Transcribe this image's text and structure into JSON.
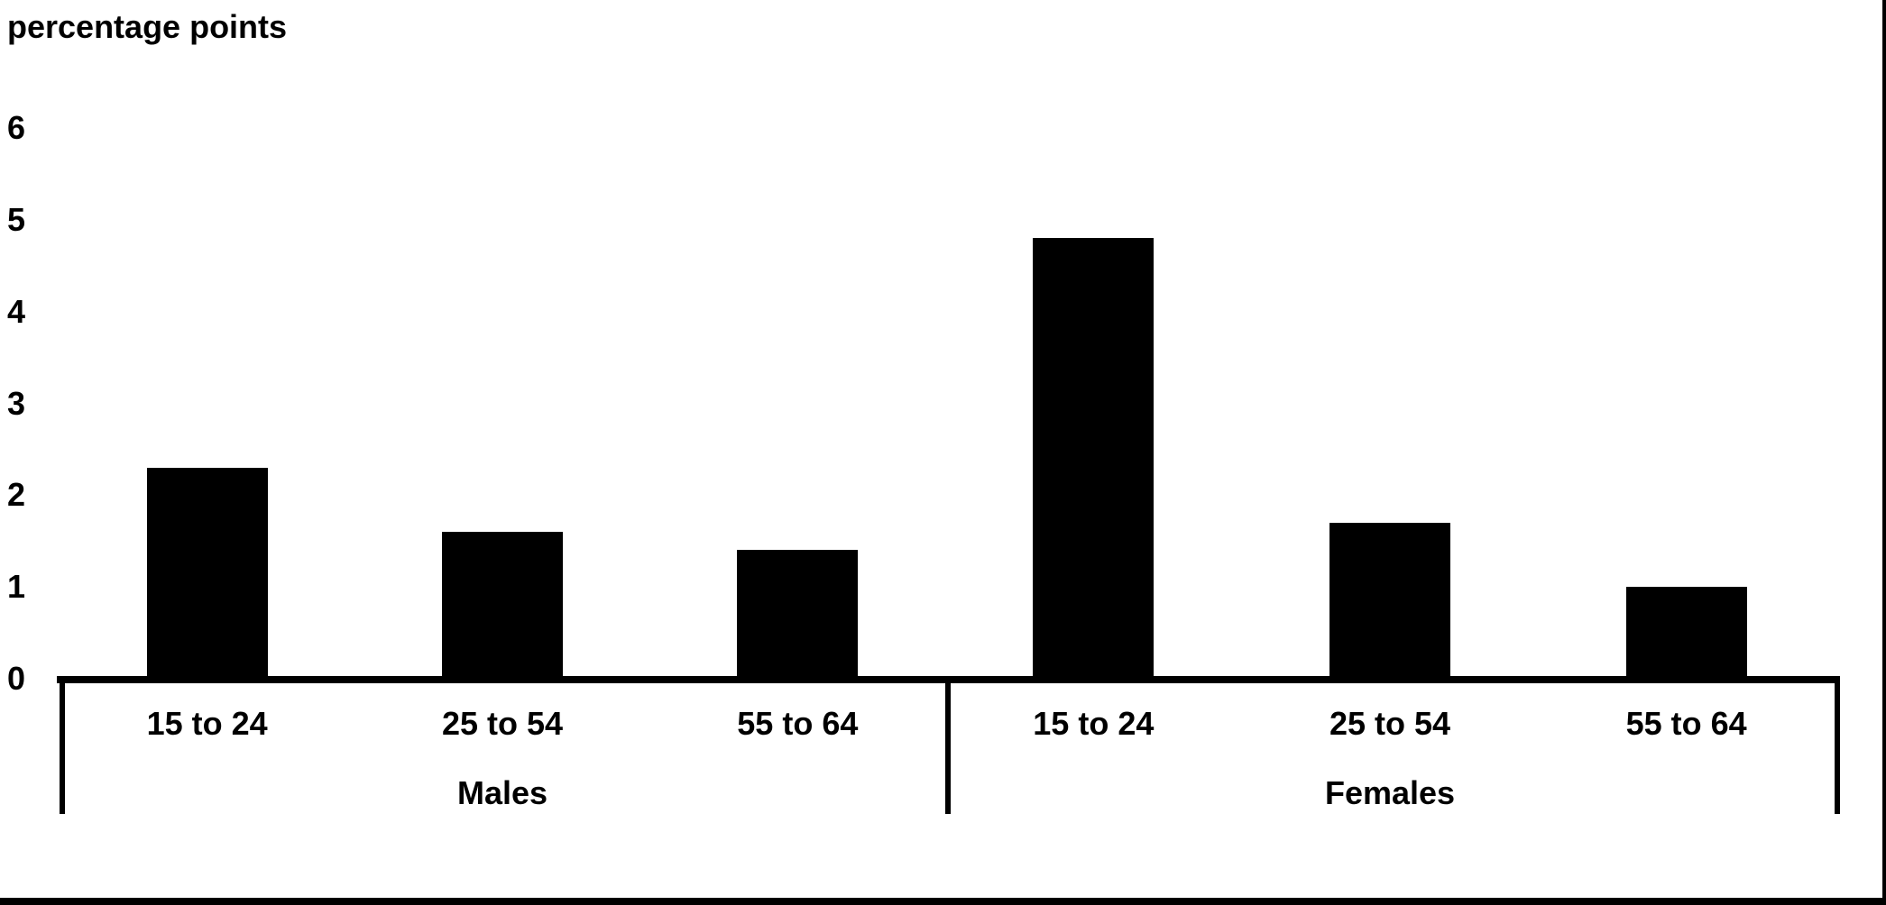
{
  "chart_data": {
    "type": "bar",
    "title": "percentage points",
    "ylabel": "percentage points",
    "xlabel": "",
    "yticks": [
      0,
      1,
      2,
      3,
      4,
      5,
      6
    ],
    "ylim": [
      0,
      6
    ],
    "grid": false,
    "legend": false,
    "bar_color": "#000000",
    "categories": [
      "15 to 24",
      "25 to 54",
      "55 to 64"
    ],
    "series": [
      {
        "name": "Males",
        "categories": [
          "15 to 24",
          "25 to 54",
          "55 to 64"
        ],
        "values": [
          2.3,
          1.6,
          1.4
        ]
      },
      {
        "name": "Females",
        "categories": [
          "15 to 24",
          "25 to 54",
          "55 to 64"
        ],
        "values": [
          4.8,
          1.7,
          1.0
        ]
      }
    ]
  }
}
